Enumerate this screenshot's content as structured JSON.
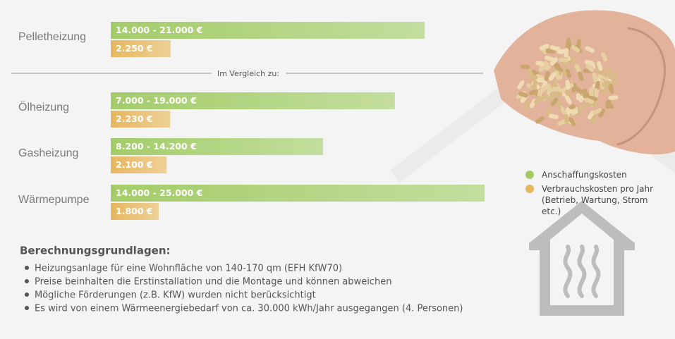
{
  "chart_data": {
    "type": "hbar",
    "categories": [
      "Pelletheizung",
      "Ölheizung",
      "Gasheizung",
      "Wärmepumpe"
    ],
    "comparison_label": "Im Vergleich zu:",
    "series": [
      {
        "name": "Anschaffungskosten",
        "color": "#a3cc69",
        "values": [
          21000,
          19000,
          14200,
          25000
        ],
        "value_labels": [
          "14.000 - 21.000 €",
          "7.000 - 19.000 €",
          "8.200 - 14.200 €",
          "14.000 - 25.000 €"
        ]
      },
      {
        "name": "Verbrauchskosten pro Jahr (Betrieb, Wartung, Strom etc.)",
        "color": "#e6b75f",
        "values": [
          2250,
          2230,
          2100,
          1800
        ],
        "value_labels": [
          "2.250 €",
          "2.230 €",
          "2.100 €",
          "1.800 €"
        ]
      }
    ]
  },
  "notes": {
    "title": "Berechnungsgrundlagen:",
    "items": [
      "Heizungsanlage für eine Wohnfläche von 140-170 qm (EFH KfW70)",
      "Preise beinhalten die Erstinstallation und die Montage und können abweichen",
      "Mögliche Förderungen (z.B. KfW) wurden nicht berücksichtigt",
      "Es wird von einem Wärmeenergiebedarf von ca. 30.000 kWh/Jahr ausgegangen (4. Personen)"
    ]
  }
}
